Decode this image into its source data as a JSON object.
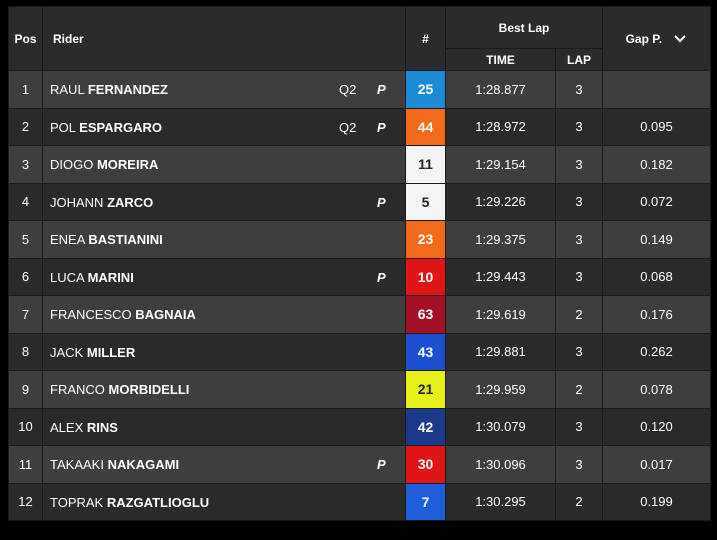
{
  "header": {
    "pos": "Pos",
    "rider": "Rider",
    "number": "#",
    "best_lap": "Best Lap",
    "time": "TIME",
    "lap": "LAP",
    "gap": "Gap P."
  },
  "rows": [
    {
      "pos": "1",
      "first": "RAUL",
      "last": "FERNANDEZ",
      "session": "Q2",
      "icon": "P",
      "number": "25",
      "color": "#1b8bd6",
      "text_color": "#ffffff",
      "time": "1:28.877",
      "lap": "3"
    },
    {
      "pos": "2",
      "first": "POL",
      "last": "ESPARGARO",
      "session": "Q2",
      "icon": "P",
      "number": "44",
      "color": "#f36a1a",
      "text_color": "#ffffff",
      "time": "1:28.972",
      "lap": "3",
      "gap": "0.095"
    },
    {
      "pos": "3",
      "first": "DIOGO",
      "last": "MOREIRA",
      "number": "11",
      "color": "#f4f4f4",
      "text_color": "#222222",
      "time": "1:29.154",
      "lap": "3",
      "gap": "0.182"
    },
    {
      "pos": "4",
      "first": "JOHANN",
      "last": "ZARCO",
      "icon": "P",
      "number": "5",
      "color": "#f4f4f4",
      "text_color": "#222222",
      "time": "1:29.226",
      "lap": "3",
      "gap": "0.072"
    },
    {
      "pos": "5",
      "first": "ENEA",
      "last": "BASTIANINI",
      "number": "23",
      "color": "#f36a1a",
      "text_color": "#ffffff",
      "time": "1:29.375",
      "lap": "3",
      "gap": "0.149"
    },
    {
      "pos": "6",
      "first": "LUCA",
      "last": "MARINI",
      "icon": "P",
      "number": "10",
      "color": "#e01515",
      "text_color": "#ffffff",
      "time": "1:29.443",
      "lap": "3",
      "gap": "0.068"
    },
    {
      "pos": "7",
      "first": "FRANCESCO",
      "last": "BAGNAIA",
      "number": "63",
      "color": "#a50f26",
      "text_color": "#ffffff",
      "time": "1:29.619",
      "lap": "2",
      "gap": "0.176"
    },
    {
      "pos": "8",
      "first": "JACK",
      "last": "MILLER",
      "number": "43",
      "color": "#1b4fcf",
      "text_color": "#ffffff",
      "time": "1:29.881",
      "lap": "3",
      "gap": "0.262"
    },
    {
      "pos": "9",
      "first": "FRANCO",
      "last": "MORBIDELLI",
      "number": "21",
      "color": "#e6ef1a",
      "text_color": "#222222",
      "time": "1:29.959",
      "lap": "2",
      "gap": "0.078"
    },
    {
      "pos": "10",
      "first": "ALEX",
      "last": "RINS",
      "number": "42",
      "color": "#1a3a8c",
      "text_color": "#ffffff",
      "time": "1:30.079",
      "lap": "3",
      "gap": "0.120"
    },
    {
      "pos": "11",
      "first": "TAKAAKI",
      "last": "NAKAGAMI",
      "icon": "P",
      "number": "30",
      "color": "#e01515",
      "text_color": "#ffffff",
      "time": "1:30.096",
      "lap": "3",
      "gap": "0.017"
    },
    {
      "pos": "12",
      "first": "TOPRAK",
      "last": "RAZGATLIOGLU",
      "number": "7",
      "color": "#1e5ed8",
      "text_color": "#ffffff",
      "time": "1:30.295",
      "lap": "2",
      "gap": "0.199"
    }
  ]
}
